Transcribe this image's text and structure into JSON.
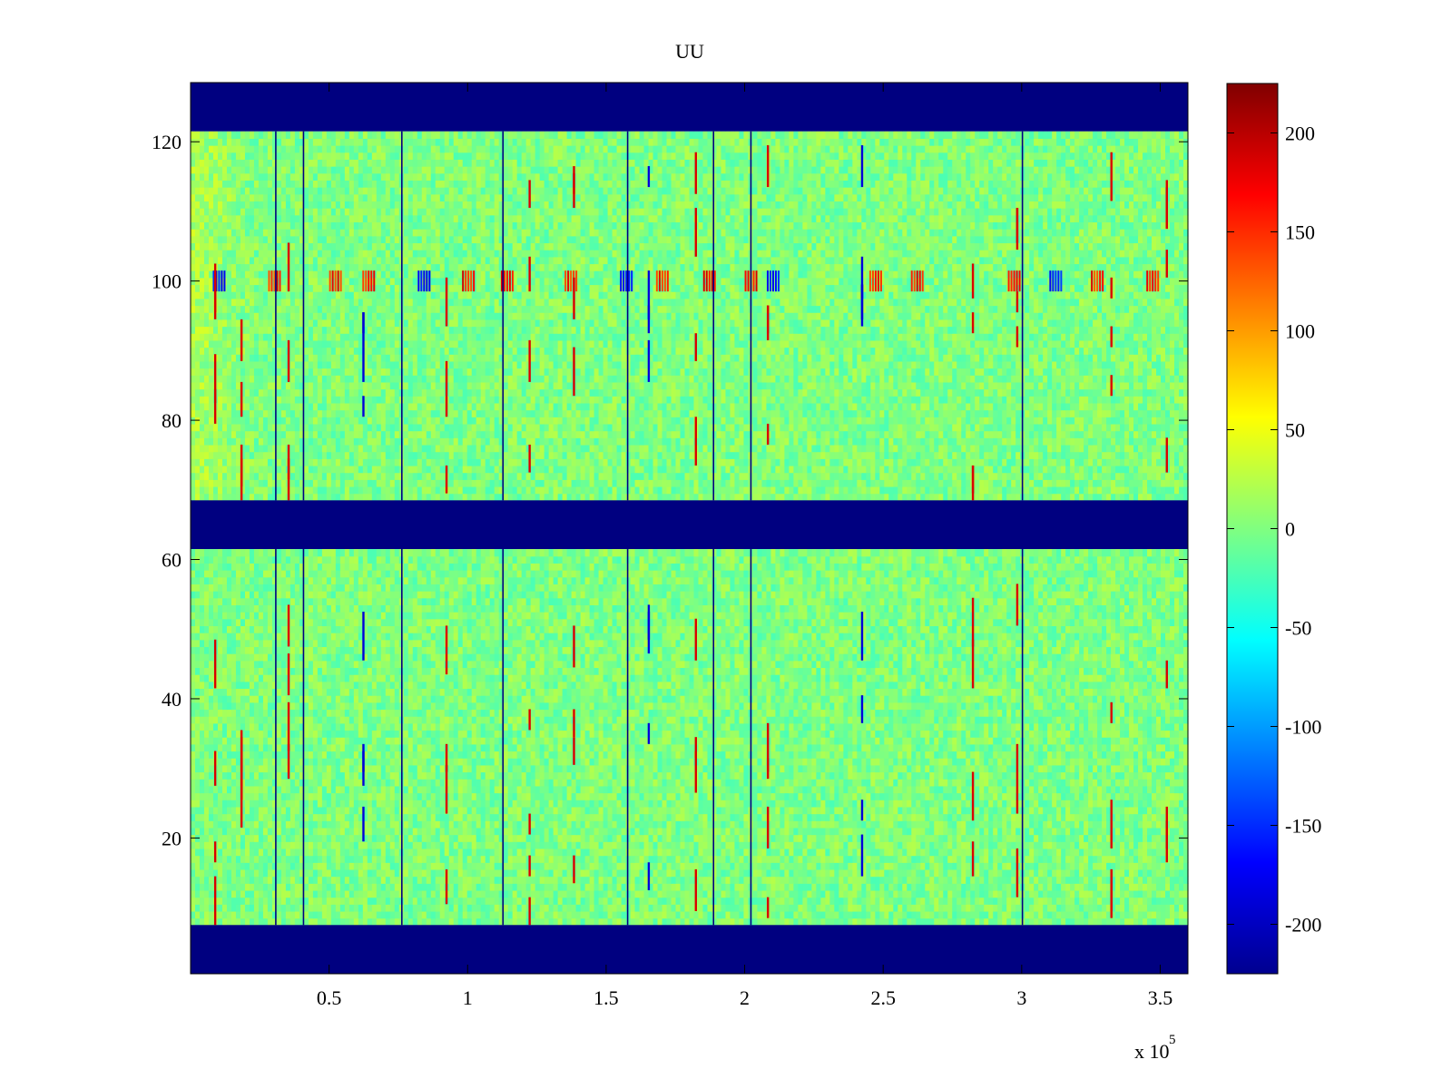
{
  "chart_data": {
    "type": "heatmap",
    "title": "UU",
    "xlabel": "",
    "ylabel": "",
    "x_exponent_label": "x 10",
    "x_exponent_power": "5",
    "xlim": [
      0,
      3.6
    ],
    "ylim": [
      0.5,
      128.5
    ],
    "x_ticks": [
      {
        "value": 0.5,
        "label": "0.5"
      },
      {
        "value": 1,
        "label": "1"
      },
      {
        "value": 1.5,
        "label": "1.5"
      },
      {
        "value": 2,
        "label": "2"
      },
      {
        "value": 2.5,
        "label": "2.5"
      },
      {
        "value": 3,
        "label": "3"
      },
      {
        "value": 3.5,
        "label": "3.5"
      }
    ],
    "y_ticks": [
      {
        "value": 20,
        "label": "20"
      },
      {
        "value": 40,
        "label": "40"
      },
      {
        "value": 60,
        "label": "60"
      },
      {
        "value": 80,
        "label": "80"
      },
      {
        "value": 100,
        "label": "100"
      },
      {
        "value": 120,
        "label": "120"
      }
    ],
    "colorbar": {
      "colormap": "jet",
      "clim": [
        -225,
        225
      ],
      "ticks": [
        {
          "value": 200,
          "label": "200"
        },
        {
          "value": 150,
          "label": "150"
        },
        {
          "value": 100,
          "label": "100"
        },
        {
          "value": 50,
          "label": "50"
        },
        {
          "value": 0,
          "label": "0"
        },
        {
          "value": -50,
          "label": "-50"
        },
        {
          "value": -100,
          "label": "-100"
        },
        {
          "value": -150,
          "label": "-150"
        },
        {
          "value": -200,
          "label": "-200"
        }
      ]
    },
    "masked_row_bands": [
      {
        "rows": [
          1,
          7
        ],
        "value": -225
      },
      {
        "rows": [
          62,
          68
        ],
        "value": -225
      },
      {
        "rows": [
          122,
          128
        ],
        "value": -225
      }
    ],
    "data_row_bands": [
      {
        "rows": [
          8,
          61
        ]
      },
      {
        "rows": [
          69,
          121
        ]
      }
    ],
    "background_value_range": [
      -40,
      40
    ],
    "vertical_dark_lines_x": [
      0.305,
      0.405,
      0.76,
      1.125,
      1.575,
      1.885,
      2.02,
      3.0
    ],
    "row100_feature_x": [
      0.08,
      0.28,
      0.5,
      0.62,
      0.82,
      0.98,
      1.12,
      1.35,
      1.55,
      1.68,
      1.85,
      2.0,
      2.08,
      2.45,
      2.6,
      2.95,
      3.1,
      3.25,
      3.45
    ],
    "notable_streaks": [
      {
        "x": 0.085,
        "sign": "positive"
      },
      {
        "x": 0.18,
        "sign": "positive"
      },
      {
        "x": 0.35,
        "sign": "positive"
      },
      {
        "x": 0.62,
        "sign": "negative"
      },
      {
        "x": 0.92,
        "sign": "positive"
      },
      {
        "x": 1.22,
        "sign": "positive"
      },
      {
        "x": 1.38,
        "sign": "positive"
      },
      {
        "x": 1.65,
        "sign": "negative"
      },
      {
        "x": 1.82,
        "sign": "positive"
      },
      {
        "x": 2.08,
        "sign": "positive"
      },
      {
        "x": 2.42,
        "sign": "negative"
      },
      {
        "x": 2.82,
        "sign": "positive"
      },
      {
        "x": 2.98,
        "sign": "positive"
      },
      {
        "x": 3.32,
        "sign": "positive"
      },
      {
        "x": 3.52,
        "sign": "positive"
      }
    ]
  }
}
